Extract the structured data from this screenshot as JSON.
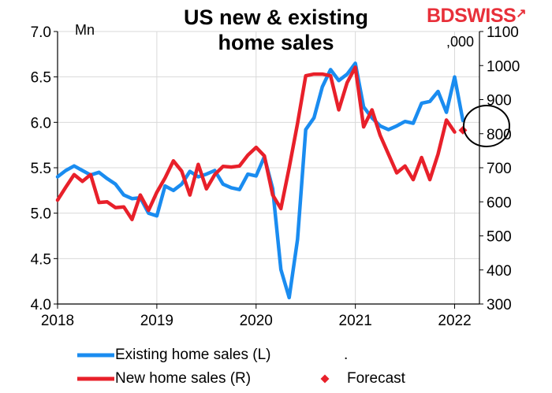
{
  "title_line1": "US new & existing",
  "title_line2": "home sales",
  "logo": "BDSWISS",
  "chart_data": {
    "type": "line",
    "left_unit": "Mn",
    "right_unit": ",000",
    "left_axis": {
      "min": 4.0,
      "max": 7.0,
      "ticks": [
        "4.0",
        "4.5",
        "5.0",
        "5.5",
        "6.0",
        "6.5",
        "7.0"
      ]
    },
    "right_axis": {
      "min": 300,
      "max": 1100,
      "ticks": [
        "300",
        "400",
        "500",
        "600",
        "700",
        "800",
        "900",
        "1000",
        "1100"
      ]
    },
    "x_ticks": [
      "2018",
      "2019",
      "2020",
      "2021",
      "2022"
    ],
    "grid": true,
    "series": [
      {
        "name": "Existing home sales (L)",
        "axis": "left",
        "color": "#1a8cf0",
        "x": [
          2018.0,
          2018.083,
          2018.167,
          2018.25,
          2018.333,
          2018.417,
          2018.5,
          2018.583,
          2018.667,
          2018.75,
          2018.833,
          2018.917,
          2019.0,
          2019.083,
          2019.167,
          2019.25,
          2019.333,
          2019.417,
          2019.5,
          2019.583,
          2019.667,
          2019.75,
          2019.833,
          2019.917,
          2020.0,
          2020.083,
          2020.167,
          2020.25,
          2020.333,
          2020.417,
          2020.5,
          2020.583,
          2020.667,
          2020.75,
          2020.833,
          2020.917,
          2021.0,
          2021.083,
          2021.167,
          2021.25,
          2021.333,
          2021.417,
          2021.5,
          2021.583,
          2021.667,
          2021.75,
          2021.833,
          2021.917,
          2022.0,
          2022.083
        ],
        "values": [
          5.4,
          5.47,
          5.52,
          5.47,
          5.42,
          5.45,
          5.38,
          5.32,
          5.2,
          5.16,
          5.17,
          5.0,
          4.97,
          5.3,
          5.25,
          5.32,
          5.46,
          5.4,
          5.43,
          5.47,
          5.32,
          5.28,
          5.26,
          5.43,
          5.41,
          5.62,
          5.27,
          4.38,
          4.07,
          4.71,
          5.92,
          6.05,
          6.39,
          6.58,
          6.46,
          6.53,
          6.65,
          6.17,
          6.05,
          5.96,
          5.92,
          5.96,
          6.01,
          5.99,
          6.21,
          6.23,
          6.34,
          6.11,
          6.5,
          6.02
        ]
      },
      {
        "name": "New home sales (R)",
        "axis": "right",
        "color": "#e8202a",
        "x": [
          2018.0,
          2018.083,
          2018.167,
          2018.25,
          2018.333,
          2018.417,
          2018.5,
          2018.583,
          2018.667,
          2018.75,
          2018.833,
          2018.917,
          2019.0,
          2019.083,
          2019.167,
          2019.25,
          2019.333,
          2019.417,
          2019.5,
          2019.583,
          2019.667,
          2019.75,
          2019.833,
          2019.917,
          2020.0,
          2020.083,
          2020.167,
          2020.25,
          2020.333,
          2020.417,
          2020.5,
          2020.583,
          2020.667,
          2020.75,
          2020.833,
          2020.917,
          2021.0,
          2021.083,
          2021.167,
          2021.25,
          2021.333,
          2021.417,
          2021.5,
          2021.583,
          2021.667,
          2021.75,
          2021.833,
          2021.917,
          2022.0
        ],
        "values": [
          605,
          643,
          680,
          660,
          680,
          598,
          600,
          583,
          585,
          548,
          620,
          575,
          628,
          670,
          720,
          690,
          620,
          710,
          638,
          680,
          704,
          702,
          705,
          737,
          760,
          735,
          620,
          580,
          700,
          830,
          970,
          975,
          975,
          970,
          870,
          950,
          995,
          820,
          870,
          795,
          740,
          685,
          705,
          665,
          730,
          665,
          740,
          840,
          805
        ]
      }
    ],
    "forecast": {
      "name": "Forecast",
      "axis": "right",
      "x": 2022.083,
      "value": 810,
      "color": "#e8202a"
    },
    "legend": [
      {
        "label": "Existing home sales (L)",
        "color": "#1a8cf0",
        "marker": "line"
      },
      {
        "label": ".",
        "color": "#000000",
        "marker": "none"
      },
      {
        "label": "New home sales (R)",
        "color": "#e8202a",
        "marker": "line"
      },
      {
        "label": "Forecast",
        "color": "#e8202a",
        "marker": "diamond"
      }
    ],
    "annotation": "circle around latest values"
  }
}
